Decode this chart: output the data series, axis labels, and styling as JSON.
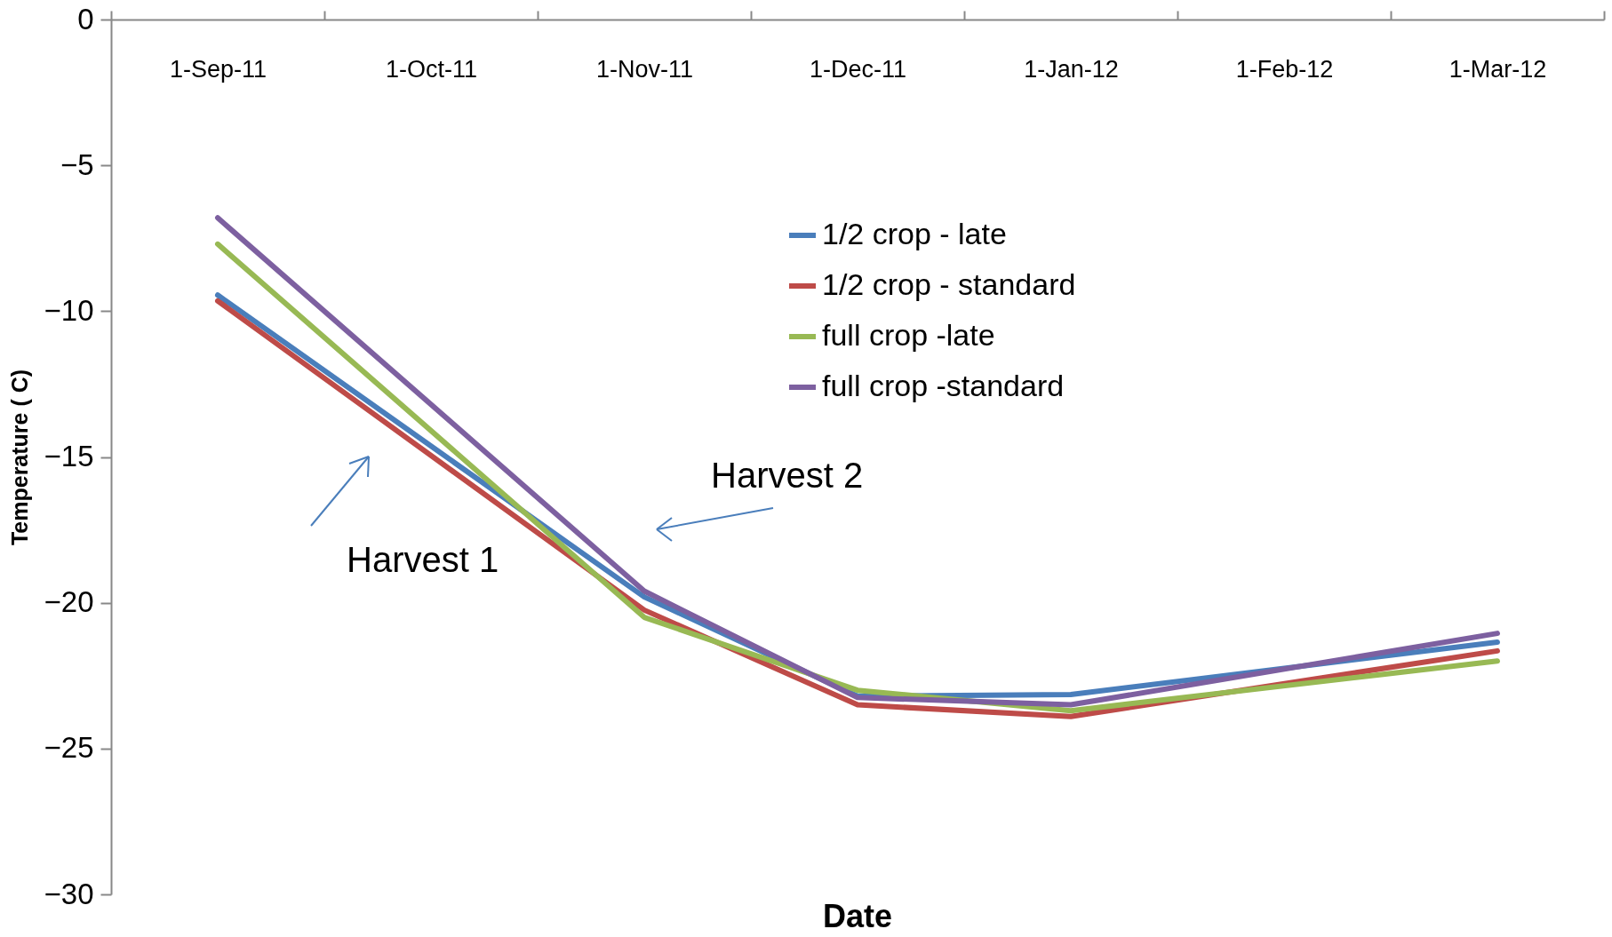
{
  "chart_data": {
    "type": "line",
    "xlabel": "Date",
    "ylabel": "Temperature ( C)",
    "categories": [
      "1-Sep-11",
      "1-Oct-11",
      "1-Nov-11",
      "1-Dec-11",
      "1-Jan-12",
      "1-Feb-12",
      "1-Mar-12"
    ],
    "series": [
      {
        "name": "1/2 crop - late",
        "color": "#4a7ebb",
        "values": [
          -9.45,
          null,
          -19.8,
          -23.2,
          -23.15,
          null,
          -21.35
        ]
      },
      {
        "name": "1/2 crop - standard",
        "color": "#be4b48",
        "values": [
          -9.65,
          null,
          -20.25,
          -23.5,
          -23.9,
          null,
          -21.65
        ]
      },
      {
        "name": "full crop -late",
        "color": "#98b954",
        "values": [
          -7.7,
          null,
          -20.5,
          -23.0,
          -23.7,
          null,
          -22.0
        ]
      },
      {
        "name": "full crop -standard",
        "color": "#7d60a0",
        "values": [
          -6.8,
          null,
          -19.6,
          -23.25,
          -23.5,
          null,
          -21.05
        ]
      }
    ],
    "ylim": [
      -30,
      0
    ],
    "yticks": [
      -30,
      -25,
      -20,
      -15,
      -10,
      -5,
      0
    ],
    "grid": false,
    "legend": "top",
    "marker": "none",
    "line_style": "solid",
    "annotations": [
      "Harvest 1",
      "Harvest 2"
    ]
  }
}
